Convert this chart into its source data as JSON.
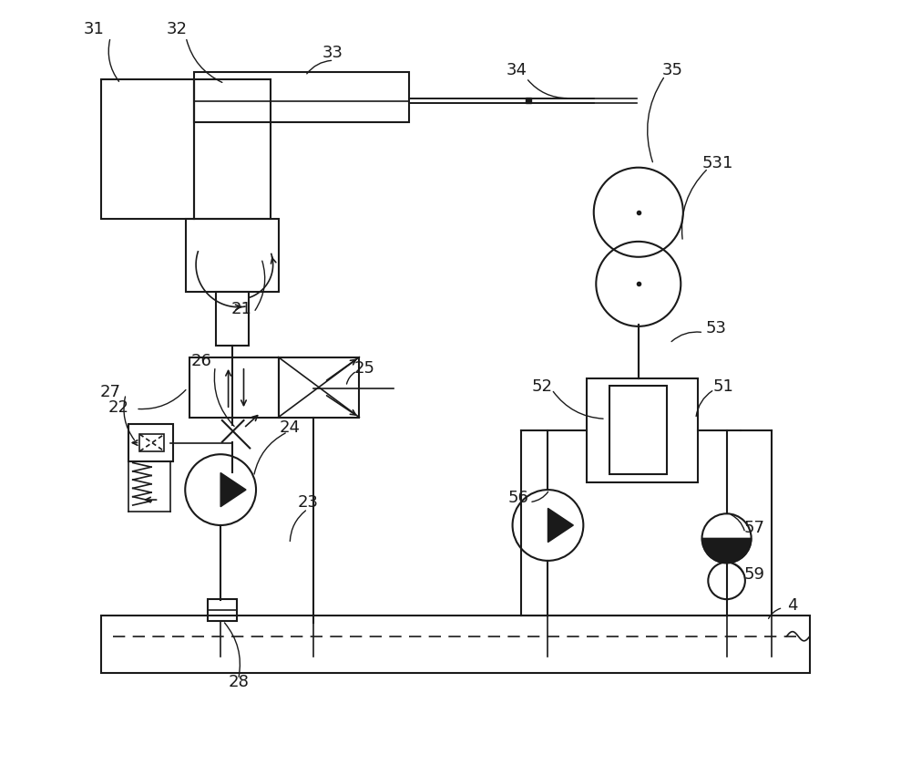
{
  "bg_color": "#ffffff",
  "line_color": "#1a1a1a",
  "line_width": 1.5,
  "fig_width": 10.0,
  "fig_height": 8.51
}
